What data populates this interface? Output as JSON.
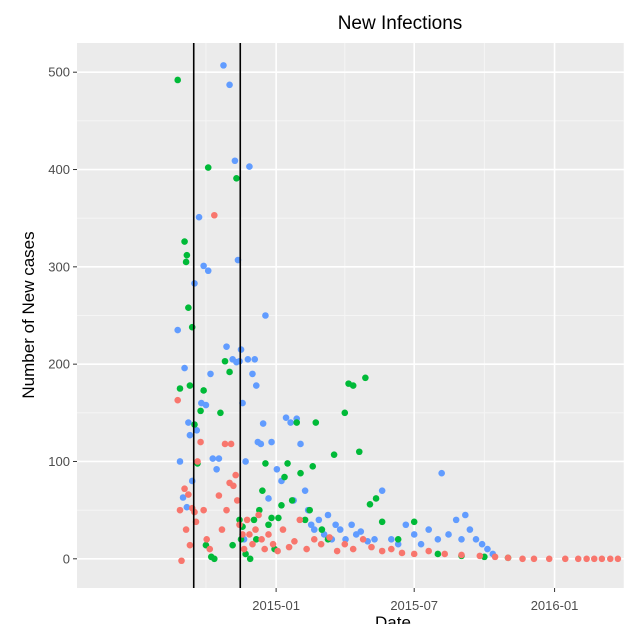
{
  "chart_data": {
    "type": "scatter",
    "title": "New Infections",
    "xlabel": "Date",
    "ylabel": "Number of New cases",
    "x_is_date": true,
    "xlim": [
      "2014-04-15",
      "2016-04-01"
    ],
    "ylim": [
      -30,
      530
    ],
    "x_ticks": [
      {
        "value": "2015-01-01",
        "label": "2015-01"
      },
      {
        "value": "2015-07-01",
        "label": "2015-07"
      },
      {
        "value": "2016-01-01",
        "label": "2016-01"
      }
    ],
    "y_ticks": [
      0,
      100,
      200,
      300,
      400,
      500
    ],
    "grid": true,
    "legend": "none",
    "vertical_lines": [
      "2014-09-15",
      "2014-11-15"
    ],
    "colors": {
      "panel": "#ebebeb",
      "grid_major": "#ffffff",
      "grid_minor": "#f5f5f5",
      "tick_text": "#4d4d4d",
      "vline": "#000000"
    },
    "series": [
      {
        "color": "#619cff",
        "points": [
          [
            "2014-08-25",
            235
          ],
          [
            "2014-08-28",
            100
          ],
          [
            "2014-09-01",
            63
          ],
          [
            "2014-09-03",
            196
          ],
          [
            "2014-09-06",
            53
          ],
          [
            "2014-09-08",
            140
          ],
          [
            "2014-09-10",
            127
          ],
          [
            "2014-09-13",
            80
          ],
          [
            "2014-09-16",
            283
          ],
          [
            "2014-09-19",
            132
          ],
          [
            "2014-09-22",
            351
          ],
          [
            "2014-09-25",
            160
          ],
          [
            "2014-09-28",
            301
          ],
          [
            "2014-10-01",
            158
          ],
          [
            "2014-10-04",
            296
          ],
          [
            "2014-10-07",
            190
          ],
          [
            "2014-10-10",
            103
          ],
          [
            "2014-10-15",
            92
          ],
          [
            "2014-10-18",
            103
          ],
          [
            "2014-10-24",
            507
          ],
          [
            "2014-10-28",
            218
          ],
          [
            "2014-11-01",
            487
          ],
          [
            "2014-11-05",
            205
          ],
          [
            "2014-11-08",
            409
          ],
          [
            "2014-11-10",
            202
          ],
          [
            "2014-11-12",
            307
          ],
          [
            "2014-11-14",
            203
          ],
          [
            "2014-11-16",
            215
          ],
          [
            "2014-11-18",
            160
          ],
          [
            "2014-11-20",
            20
          ],
          [
            "2014-11-22",
            100
          ],
          [
            "2014-11-25",
            205
          ],
          [
            "2014-11-27",
            403
          ],
          [
            "2014-12-01",
            190
          ],
          [
            "2014-12-04",
            205
          ],
          [
            "2014-12-06",
            178
          ],
          [
            "2014-12-08",
            120
          ],
          [
            "2014-12-12",
            118
          ],
          [
            "2014-12-15",
            139
          ],
          [
            "2014-12-18",
            250
          ],
          [
            "2014-12-22",
            62
          ],
          [
            "2014-12-26",
            120
          ],
          [
            "2015-01-02",
            92
          ],
          [
            "2015-01-08",
            80
          ],
          [
            "2015-01-14",
            145
          ],
          [
            "2015-01-20",
            140
          ],
          [
            "2015-01-24",
            60
          ],
          [
            "2015-01-28",
            144
          ],
          [
            "2015-02-02",
            118
          ],
          [
            "2015-02-08",
            70
          ],
          [
            "2015-02-12",
            50
          ],
          [
            "2015-02-16",
            35
          ],
          [
            "2015-02-20",
            30
          ],
          [
            "2015-02-26",
            40
          ],
          [
            "2015-03-05",
            25
          ],
          [
            "2015-03-10",
            45
          ],
          [
            "2015-03-15",
            20
          ],
          [
            "2015-03-20",
            35
          ],
          [
            "2015-03-26",
            30
          ],
          [
            "2015-04-02",
            20
          ],
          [
            "2015-04-10",
            35
          ],
          [
            "2015-04-16",
            25
          ],
          [
            "2015-04-22",
            28
          ],
          [
            "2015-05-01",
            18
          ],
          [
            "2015-05-10",
            20
          ],
          [
            "2015-05-20",
            70
          ],
          [
            "2015-06-01",
            20
          ],
          [
            "2015-06-10",
            15
          ],
          [
            "2015-06-20",
            35
          ],
          [
            "2015-07-01",
            25
          ],
          [
            "2015-07-10",
            15
          ],
          [
            "2015-07-20",
            30
          ],
          [
            "2015-08-01",
            20
          ],
          [
            "2015-08-06",
            88
          ],
          [
            "2015-08-15",
            25
          ],
          [
            "2015-08-25",
            40
          ],
          [
            "2015-09-01",
            20
          ],
          [
            "2015-09-06",
            45
          ],
          [
            "2015-09-12",
            30
          ],
          [
            "2015-09-20",
            20
          ],
          [
            "2015-09-28",
            15
          ],
          [
            "2015-10-05",
            10
          ],
          [
            "2015-10-12",
            5
          ]
        ]
      },
      {
        "color": "#00ba38",
        "points": [
          [
            "2014-08-25",
            492
          ],
          [
            "2014-08-28",
            175
          ],
          [
            "2014-09-03",
            326
          ],
          [
            "2014-09-05",
            305
          ],
          [
            "2014-09-06",
            312
          ],
          [
            "2014-09-08",
            258
          ],
          [
            "2014-09-10",
            178
          ],
          [
            "2014-09-13",
            238
          ],
          [
            "2014-09-16",
            138
          ],
          [
            "2014-09-20",
            98
          ],
          [
            "2014-09-24",
            152
          ],
          [
            "2014-09-28",
            173
          ],
          [
            "2014-10-01",
            14
          ],
          [
            "2014-10-04",
            402
          ],
          [
            "2014-10-08",
            2
          ],
          [
            "2014-10-12",
            0
          ],
          [
            "2014-10-20",
            150
          ],
          [
            "2014-10-26",
            203
          ],
          [
            "2014-11-01",
            192
          ],
          [
            "2014-11-05",
            14
          ],
          [
            "2014-11-10",
            391
          ],
          [
            "2014-11-14",
            40
          ],
          [
            "2014-11-16",
            20
          ],
          [
            "2014-11-18",
            33
          ],
          [
            "2014-11-22",
            5
          ],
          [
            "2014-11-28",
            0
          ],
          [
            "2014-12-03",
            40
          ],
          [
            "2014-12-06",
            20
          ],
          [
            "2014-12-10",
            50
          ],
          [
            "2014-12-14",
            70
          ],
          [
            "2014-12-18",
            98
          ],
          [
            "2014-12-22",
            35
          ],
          [
            "2014-12-26",
            42
          ],
          [
            "2014-12-30",
            10
          ],
          [
            "2015-01-04",
            42
          ],
          [
            "2015-01-08",
            55
          ],
          [
            "2015-01-12",
            84
          ],
          [
            "2015-01-16",
            98
          ],
          [
            "2015-01-22",
            60
          ],
          [
            "2015-01-28",
            140
          ],
          [
            "2015-02-02",
            88
          ],
          [
            "2015-02-08",
            40
          ],
          [
            "2015-02-14",
            50
          ],
          [
            "2015-02-18",
            95
          ],
          [
            "2015-02-22",
            140
          ],
          [
            "2015-03-02",
            30
          ],
          [
            "2015-03-10",
            20
          ],
          [
            "2015-03-18",
            107
          ],
          [
            "2015-04-01",
            150
          ],
          [
            "2015-04-06",
            180
          ],
          [
            "2015-04-12",
            178
          ],
          [
            "2015-04-20",
            110
          ],
          [
            "2015-04-28",
            186
          ],
          [
            "2015-05-04",
            56
          ],
          [
            "2015-05-12",
            62
          ],
          [
            "2015-05-20",
            38
          ],
          [
            "2015-06-10",
            20
          ],
          [
            "2015-07-01",
            38
          ],
          [
            "2015-08-01",
            5
          ],
          [
            "2015-09-01",
            3
          ],
          [
            "2015-10-01",
            2
          ],
          [
            "2015-11-01",
            1
          ]
        ]
      },
      {
        "color": "#f8766d",
        "points": [
          [
            "2014-08-25",
            163
          ],
          [
            "2014-08-28",
            50
          ],
          [
            "2014-08-30",
            -2
          ],
          [
            "2014-09-03",
            72
          ],
          [
            "2014-09-05",
            30
          ],
          [
            "2014-09-08",
            66
          ],
          [
            "2014-09-10",
            14
          ],
          [
            "2014-09-13",
            52
          ],
          [
            "2014-09-16",
            48
          ],
          [
            "2014-09-18",
            38
          ],
          [
            "2014-09-20",
            100
          ],
          [
            "2014-09-24",
            120
          ],
          [
            "2014-09-28",
            50
          ],
          [
            "2014-10-02",
            20
          ],
          [
            "2014-10-06",
            10
          ],
          [
            "2014-10-12",
            353
          ],
          [
            "2014-10-18",
            65
          ],
          [
            "2014-10-22",
            30
          ],
          [
            "2014-10-26",
            118
          ],
          [
            "2014-10-28",
            50
          ],
          [
            "2014-11-01",
            78
          ],
          [
            "2014-11-03",
            118
          ],
          [
            "2014-11-06",
            75
          ],
          [
            "2014-11-09",
            86
          ],
          [
            "2014-11-11",
            60
          ],
          [
            "2014-11-14",
            35
          ],
          [
            "2014-11-18",
            25
          ],
          [
            "2014-11-20",
            10
          ],
          [
            "2014-11-24",
            40
          ],
          [
            "2014-11-27",
            25
          ],
          [
            "2014-12-01",
            15
          ],
          [
            "2014-12-05",
            30
          ],
          [
            "2014-12-09",
            45
          ],
          [
            "2014-12-13",
            20
          ],
          [
            "2014-12-17",
            10
          ],
          [
            "2014-12-22",
            25
          ],
          [
            "2014-12-28",
            15
          ],
          [
            "2015-01-03",
            8
          ],
          [
            "2015-01-10",
            30
          ],
          [
            "2015-01-18",
            12
          ],
          [
            "2015-01-25",
            18
          ],
          [
            "2015-02-01",
            40
          ],
          [
            "2015-02-10",
            10
          ],
          [
            "2015-02-20",
            20
          ],
          [
            "2015-03-01",
            15
          ],
          [
            "2015-03-12",
            22
          ],
          [
            "2015-03-22",
            8
          ],
          [
            "2015-04-01",
            15
          ],
          [
            "2015-04-12",
            10
          ],
          [
            "2015-04-25",
            20
          ],
          [
            "2015-05-06",
            12
          ],
          [
            "2015-05-20",
            8
          ],
          [
            "2015-06-01",
            10
          ],
          [
            "2015-06-15",
            6
          ],
          [
            "2015-07-01",
            5
          ],
          [
            "2015-07-20",
            8
          ],
          [
            "2015-08-10",
            5
          ],
          [
            "2015-09-01",
            4
          ],
          [
            "2015-09-25",
            3
          ],
          [
            "2015-10-15",
            2
          ],
          [
            "2015-11-01",
            1
          ],
          [
            "2015-11-20",
            0
          ],
          [
            "2015-12-05",
            0
          ],
          [
            "2015-12-25",
            0
          ],
          [
            "2016-01-15",
            0
          ],
          [
            "2016-02-01",
            0
          ],
          [
            "2016-02-12",
            0
          ],
          [
            "2016-02-22",
            0
          ],
          [
            "2016-03-03",
            0
          ],
          [
            "2016-03-14",
            0
          ],
          [
            "2016-03-24",
            0
          ]
        ]
      }
    ]
  }
}
